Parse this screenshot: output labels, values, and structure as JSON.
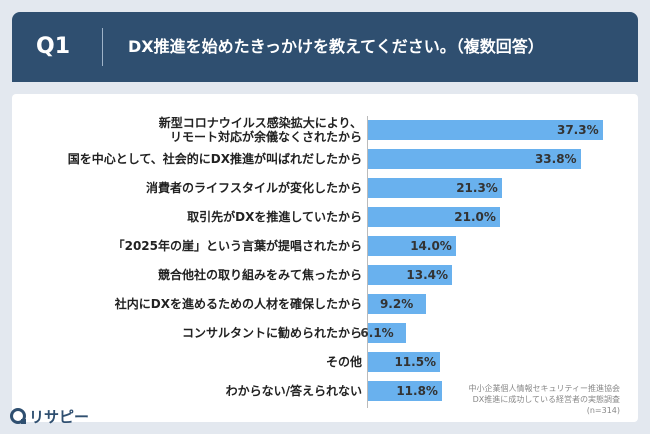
{
  "header": {
    "q_number": "Q1",
    "question": "DX推進を始めたきっかけを教えてください。（複数回答）"
  },
  "chart_data": {
    "type": "bar",
    "orientation": "horizontal",
    "categories": [
      [
        "新型コロナウイルス感染拡大により、",
        "リモート対応が余儀なくされたから"
      ],
      [
        "国を中心として、社会的にDX推進が叫ばれだしたから"
      ],
      [
        "消費者のライフスタイルが変化したから"
      ],
      [
        "取引先がDXを推進していたから"
      ],
      [
        "「2025年の崖」という言葉が提唱されたから"
      ],
      [
        "競合他社の取り組みをみて焦ったから"
      ],
      [
        "社内にDXを進めるための人材を確保したから"
      ],
      [
        "コンサルタントに勧められたから"
      ],
      [
        "その他"
      ],
      [
        "わからない/答えられない"
      ]
    ],
    "values": [
      37.3,
      33.8,
      21.3,
      21.0,
      14.0,
      13.4,
      9.2,
      6.1,
      11.5,
      11.8
    ],
    "value_labels": [
      "37.3%",
      "33.8%",
      "21.3%",
      "21.0%",
      "14.0%",
      "13.4%",
      "9.2%",
      "6.1%",
      "11.5%",
      "11.8%"
    ],
    "xlim": [
      0,
      40
    ],
    "bar_color": "#69b1ee"
  },
  "source": {
    "line1": "中小企業個人情報セキュリティー推進協会",
    "line2": "DX推進に成功している経営者の実態調査",
    "line3": "(n=314)"
  },
  "logo": {
    "text": "リサピー",
    "color": "#2f4f70"
  }
}
